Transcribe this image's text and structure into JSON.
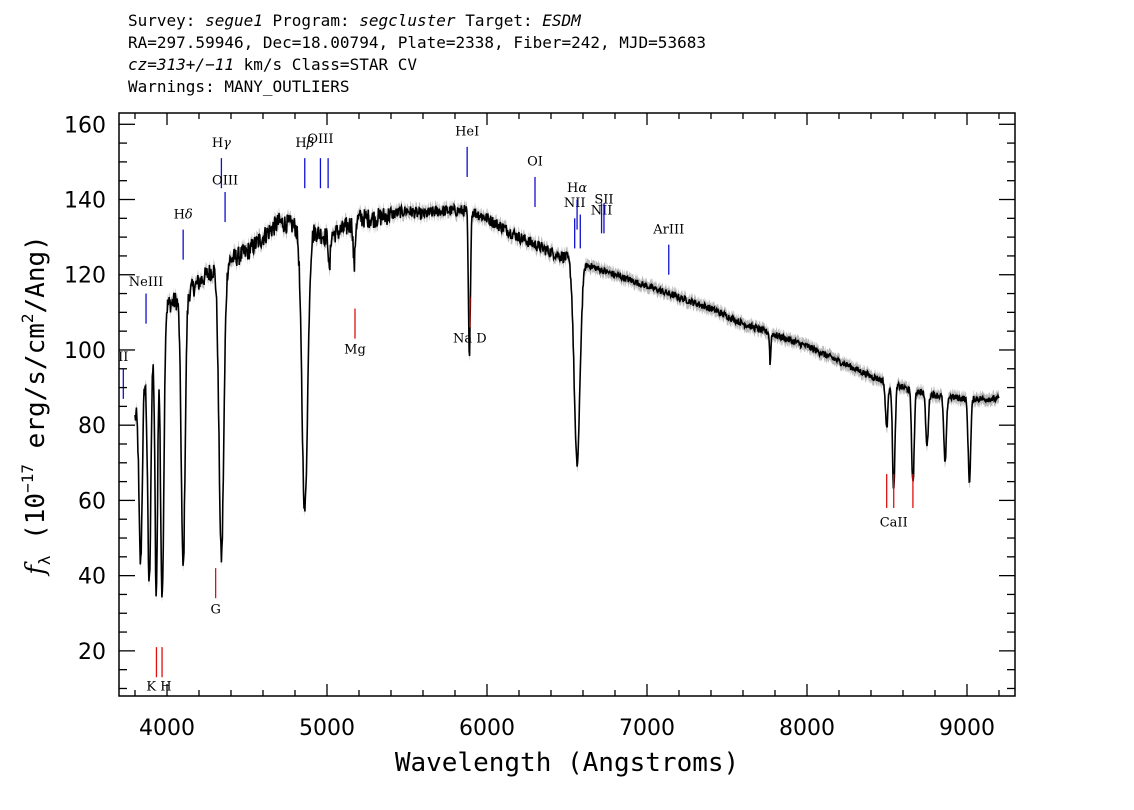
{
  "header": {
    "survey_label": "Survey:",
    "survey": "segue1",
    "program_label": "Program:",
    "program": "segcluster",
    "target_label": "Target:",
    "target": "ESDM",
    "line2": "RA=297.59946, Dec=18.00794, Plate=2338, Fiber=242, MJD=53683",
    "redshift": "cz=313+/−11",
    "line3_rest": " km/s Class=STAR CV",
    "line4": "Warnings: MANY_OUTLIERS"
  },
  "chart_data": {
    "type": "line",
    "xlabel": "Wavelength (Angstroms)",
    "ylabel": "f_λ (10^-17 erg/s/cm^2/Ang)",
    "ylabel_parts": {
      "f": "f",
      "sub": "λ",
      "a": " (10",
      "exp1": "−17",
      "b": " erg/s/cm",
      "exp2": "2",
      "c": "/Ang)"
    },
    "xlim": [
      3700,
      9300
    ],
    "ylim": [
      8,
      163
    ],
    "x_ticks": [
      4000,
      5000,
      6000,
      7000,
      8000,
      9000
    ],
    "y_ticks": [
      20,
      40,
      60,
      80,
      100,
      120,
      140,
      160
    ],
    "continuum": [
      [
        3800,
        82
      ],
      [
        3900,
        100
      ],
      [
        4000,
        112
      ],
      [
        4100,
        114
      ],
      [
        4200,
        118
      ],
      [
        4300,
        122
      ],
      [
        4400,
        124
      ],
      [
        4500,
        126
      ],
      [
        4600,
        130
      ],
      [
        4700,
        134
      ],
      [
        4800,
        133
      ],
      [
        4900,
        132
      ],
      [
        5000,
        130
      ],
      [
        5100,
        132
      ],
      [
        5200,
        135
      ],
      [
        5300,
        135
      ],
      [
        5400,
        136
      ],
      [
        5500,
        137
      ],
      [
        5600,
        136
      ],
      [
        5700,
        137
      ],
      [
        5800,
        137
      ],
      [
        5900,
        137
      ],
      [
        6000,
        135
      ],
      [
        6200,
        130
      ],
      [
        6400,
        126
      ],
      [
        6600,
        123
      ],
      [
        6800,
        120
      ],
      [
        7000,
        117
      ],
      [
        7200,
        114
      ],
      [
        7400,
        111
      ],
      [
        7600,
        107
      ],
      [
        7800,
        104
      ],
      [
        8000,
        101
      ],
      [
        8200,
        97
      ],
      [
        8400,
        93
      ],
      [
        8600,
        90
      ],
      [
        8800,
        88
      ],
      [
        9000,
        87
      ],
      [
        9200,
        87
      ]
    ],
    "absorption": [
      {
        "center": 3835,
        "depth": 45,
        "width": 10
      },
      {
        "center": 3889,
        "depth": 60,
        "width": 10
      },
      {
        "center": 3933,
        "depth": 70,
        "width": 8
      },
      {
        "center": 3970,
        "depth": 75,
        "width": 10
      },
      {
        "center": 4101,
        "depth": 72,
        "width": 12
      },
      {
        "center": 4340,
        "depth": 78,
        "width": 15
      },
      {
        "center": 4861,
        "depth": 75,
        "width": 18
      },
      {
        "center": 5015,
        "depth": 10,
        "width": 5
      },
      {
        "center": 5170,
        "depth": 12,
        "width": 6
      },
      {
        "center": 5890,
        "depth": 40,
        "width": 6
      },
      {
        "center": 6563,
        "depth": 54,
        "width": 18
      },
      {
        "center": 7770,
        "depth": 8,
        "width": 4
      },
      {
        "center": 8498,
        "depth": 12,
        "width": 8
      },
      {
        "center": 8542,
        "depth": 28,
        "width": 8
      },
      {
        "center": 8662,
        "depth": 25,
        "width": 8
      },
      {
        "center": 8750,
        "depth": 14,
        "width": 8
      },
      {
        "center": 8863,
        "depth": 18,
        "width": 8
      },
      {
        "center": 9015,
        "depth": 22,
        "width": 8
      }
    ],
    "emission_lines": [
      {
        "label": "H",
        "label_greek": "γ",
        "x": 4340,
        "y_top": 151,
        "y_bottom": 143,
        "label_y": 154
      },
      {
        "label": "OIII",
        "label_greek": "",
        "x": 4363,
        "y_top": 142,
        "y_bottom": 134,
        "label_y": 144
      },
      {
        "label": "H",
        "label_greek": "δ",
        "x": 4101,
        "y_top": 132,
        "y_bottom": 124,
        "label_y": 135
      },
      {
        "label": "H",
        "label_greek": "β",
        "x": 4861,
        "y_top": 151,
        "y_bottom": 143,
        "label_y": 154
      },
      {
        "label": "OIII",
        "label_greek": "",
        "x": 4959,
        "y_top": 151,
        "y_bottom": 143,
        "label_y": 155
      },
      {
        "label": "",
        "label_greek": "",
        "x": 5007,
        "y_top": 151,
        "y_bottom": 143,
        "label_y": 155
      },
      {
        "label": "HeI",
        "label_greek": "",
        "x": 5876,
        "y_top": 154,
        "y_bottom": 146,
        "label_y": 157
      },
      {
        "label": "OI",
        "label_greek": "",
        "x": 6300,
        "y_top": 146,
        "y_bottom": 138,
        "label_y": 149
      },
      {
        "label": "NII",
        "label_greek": "",
        "x": 6548,
        "y_top": 135,
        "y_bottom": 127,
        "label_y": 138
      },
      {
        "label": "H",
        "label_greek": "α",
        "x": 6563,
        "y_top": 140,
        "y_bottom": 132,
        "label_y": 142
      },
      {
        "label": "",
        "label_greek": "",
        "x": 6583,
        "y_top": 136,
        "y_bottom": 127,
        "label_y": 138
      },
      {
        "label": "NII",
        "label_greek": "",
        "x": 6716,
        "y_top": 139,
        "y_bottom": 131,
        "label_y": 136
      },
      {
        "label": "SII",
        "label_greek": "",
        "x": 6731,
        "y_top": 139,
        "y_bottom": 131,
        "label_y": 139
      },
      {
        "label": "ArIII",
        "label_greek": "",
        "x": 7136,
        "y_top": 128,
        "y_bottom": 120,
        "label_y": 131
      },
      {
        "label": "NeIII",
        "label_greek": "",
        "x": 3869,
        "y_top": 115,
        "y_bottom": 107,
        "label_y": 117
      },
      {
        "label": "II",
        "label_greek": "",
        "x": 3727,
        "y_top": 95,
        "y_bottom": 87,
        "label_y": 97
      }
    ],
    "absorption_markers": [
      {
        "label": "K H",
        "x": 3950,
        "positions": [
          3934,
          3969
        ],
        "y_top": 21,
        "y_bottom": 13,
        "label_y": 9.5
      },
      {
        "label": "G",
        "x": 4304,
        "positions": [
          4304
        ],
        "y_top": 42,
        "y_bottom": 34,
        "label_y": 30
      },
      {
        "label": "Mg",
        "x": 5175,
        "positions": [
          5175
        ],
        "y_top": 111,
        "y_bottom": 103,
        "label_y": 99
      },
      {
        "label": "Na  D",
        "x": 5893,
        "positions": [
          5893
        ],
        "y_top": 114,
        "y_bottom": 106,
        "label_y": 102
      },
      {
        "label": "CaII",
        "x": 8542,
        "positions": [
          8498,
          8542,
          8662
        ],
        "y_top": 67,
        "y_bottom": 58,
        "label_y": 53
      }
    ],
    "colors": {
      "emission": "#1010d0",
      "absorption": "#e01010",
      "spectrum": "#000000",
      "error": "#b8b8b8"
    },
    "grid": false,
    "legend": "none"
  }
}
